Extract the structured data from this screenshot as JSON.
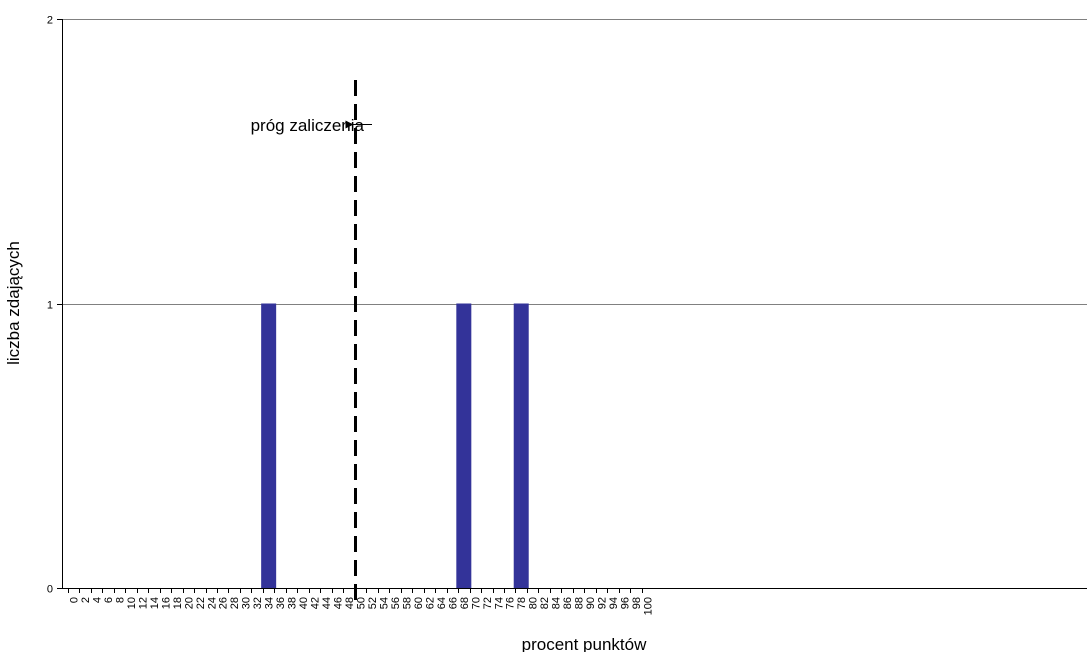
{
  "chart_data": {
    "type": "bar",
    "xlabel": "procent punktów",
    "ylabel": "liczba zdających",
    "categories": [
      "0",
      "2",
      "4",
      "6",
      "8",
      "10",
      "12",
      "14",
      "16",
      "18",
      "20",
      "22",
      "24",
      "26",
      "28",
      "30",
      "32",
      "34",
      "36",
      "38",
      "40",
      "42",
      "44",
      "46",
      "48",
      "50",
      "52",
      "54",
      "56",
      "58",
      "60",
      "62",
      "64",
      "66",
      "68",
      "70",
      "72",
      "74",
      "76",
      "78",
      "80",
      "82",
      "84",
      "86",
      "88",
      "90",
      "92",
      "94",
      "96",
      "98",
      "100"
    ],
    "values": [
      0,
      0,
      0,
      0,
      0,
      0,
      0,
      0,
      0,
      0,
      0,
      0,
      0,
      0,
      0,
      0,
      0,
      1,
      0,
      0,
      0,
      0,
      0,
      0,
      0,
      0,
      0,
      0,
      0,
      0,
      0,
      0,
      0,
      0,
      1,
      0,
      0,
      0,
      0,
      1,
      0,
      0,
      0,
      0,
      0,
      0,
      0,
      0,
      0,
      0,
      0
    ],
    "ylim": [
      0,
      2
    ],
    "yticks": [
      "0",
      "1",
      "2"
    ],
    "grid": true,
    "bar_color": "#333399",
    "threshold": {
      "x": 49,
      "label": "próg zaliczenia",
      "style": "dashed"
    }
  }
}
